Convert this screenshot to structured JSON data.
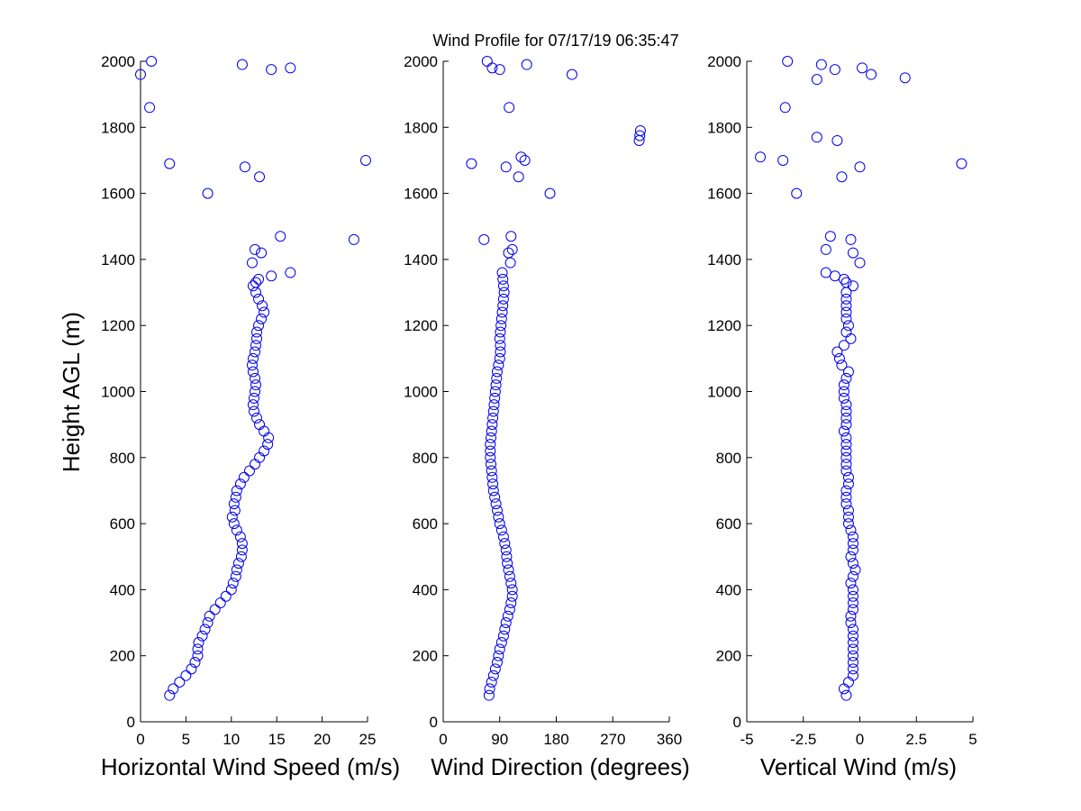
{
  "figure": {
    "title": "Wind Profile for  07/17/19 06:35:47",
    "ylabel": "Height AGL (m)"
  },
  "chart_data": [
    {
      "type": "scatter",
      "xlabel": "Horizontal Wind Speed (m/s)",
      "ylabel": "Height AGL (m)",
      "xlim": [
        0,
        25
      ],
      "ylim": [
        0,
        2000
      ],
      "xticks": [
        "0",
        "5",
        "10",
        "15",
        "20",
        "25"
      ],
      "yticks": [
        "0",
        "200",
        "400",
        "600",
        "800",
        "1000",
        "1200",
        "1400",
        "1600",
        "1800",
        "2000"
      ],
      "grid": false,
      "marker": "open-circle",
      "color": "#0000ee",
      "profile": [
        [
          80,
          3.2
        ],
        [
          100,
          3.6
        ],
        [
          120,
          4.3
        ],
        [
          140,
          5.0
        ],
        [
          160,
          5.6
        ],
        [
          180,
          6.0
        ],
        [
          200,
          6.3
        ],
        [
          220,
          6.3
        ],
        [
          240,
          6.4
        ],
        [
          260,
          6.8
        ],
        [
          280,
          7.1
        ],
        [
          300,
          7.4
        ],
        [
          320,
          7.6
        ],
        [
          340,
          8.2
        ],
        [
          360,
          8.8
        ],
        [
          380,
          9.4
        ],
        [
          400,
          10.0
        ],
        [
          420,
          10.2
        ],
        [
          440,
          10.5
        ],
        [
          460,
          10.6
        ],
        [
          480,
          10.8
        ],
        [
          500,
          11.1
        ],
        [
          520,
          11.2
        ],
        [
          540,
          11.2
        ],
        [
          560,
          11.0
        ],
        [
          580,
          10.6
        ],
        [
          600,
          10.3
        ],
        [
          620,
          10.1
        ],
        [
          640,
          10.4
        ],
        [
          660,
          10.3
        ],
        [
          680,
          10.5
        ],
        [
          700,
          10.6
        ],
        [
          720,
          11.0
        ],
        [
          740,
          11.4
        ],
        [
          760,
          12.0
        ],
        [
          780,
          12.6
        ],
        [
          800,
          13.1
        ],
        [
          820,
          13.6
        ],
        [
          840,
          14.0
        ],
        [
          860,
          14.1
        ],
        [
          880,
          13.6
        ],
        [
          900,
          13.1
        ],
        [
          920,
          12.8
        ],
        [
          940,
          12.5
        ],
        [
          960,
          12.4
        ],
        [
          980,
          12.5
        ],
        [
          1000,
          12.6
        ],
        [
          1020,
          12.7
        ],
        [
          1040,
          12.6
        ],
        [
          1060,
          12.4
        ],
        [
          1080,
          12.3
        ],
        [
          1100,
          12.4
        ],
        [
          1120,
          12.6
        ],
        [
          1140,
          12.7
        ],
        [
          1160,
          12.8
        ],
        [
          1180,
          12.8
        ],
        [
          1200,
          13.0
        ],
        [
          1220,
          13.3
        ],
        [
          1240,
          13.6
        ],
        [
          1260,
          13.4
        ],
        [
          1280,
          13.0
        ],
        [
          1300,
          12.7
        ],
        [
          1320,
          12.4
        ]
      ],
      "scatter_points": [
        [
          1330,
          12.7
        ],
        [
          1340,
          13.0
        ],
        [
          1350,
          14.4
        ],
        [
          1360,
          16.5
        ],
        [
          1390,
          12.3
        ],
        [
          1420,
          13.3
        ],
        [
          1430,
          12.6
        ],
        [
          1460,
          23.5
        ],
        [
          1470,
          15.4
        ],
        [
          1600,
          7.4
        ],
        [
          1650,
          13.1
        ],
        [
          1680,
          11.5
        ],
        [
          1690,
          3.2
        ],
        [
          1700,
          24.8
        ],
        [
          1860,
          1.0
        ],
        [
          1960,
          0.0
        ],
        [
          1975,
          14.4
        ],
        [
          1980,
          16.5
        ],
        [
          1990,
          11.2
        ],
        [
          2000,
          1.2
        ]
      ]
    },
    {
      "type": "scatter",
      "xlabel": "Wind Direction (degrees)",
      "xlim": [
        0,
        360
      ],
      "ylim": [
        0,
        2000
      ],
      "xticks": [
        "0",
        "90",
        "180",
        "270",
        "360"
      ],
      "yticks": [
        "0",
        "200",
        "400",
        "600",
        "800",
        "1000",
        "1200",
        "1400",
        "1600",
        "1800",
        "2000"
      ],
      "grid": false,
      "marker": "open-circle",
      "color": "#0000ee",
      "profile": [
        [
          80,
          73
        ],
        [
          100,
          74
        ],
        [
          120,
          77
        ],
        [
          140,
          80
        ],
        [
          160,
          83
        ],
        [
          180,
          86
        ],
        [
          200,
          88
        ],
        [
          220,
          90
        ],
        [
          240,
          93
        ],
        [
          260,
          96
        ],
        [
          280,
          98
        ],
        [
          300,
          100
        ],
        [
          320,
          103
        ],
        [
          340,
          106
        ],
        [
          360,
          108
        ],
        [
          380,
          110
        ],
        [
          400,
          110
        ],
        [
          420,
          108
        ],
        [
          440,
          106
        ],
        [
          460,
          104
        ],
        [
          480,
          102
        ],
        [
          500,
          101
        ],
        [
          520,
          100
        ],
        [
          540,
          98
        ],
        [
          560,
          96
        ],
        [
          580,
          93
        ],
        [
          600,
          90
        ],
        [
          620,
          88
        ],
        [
          640,
          86
        ],
        [
          660,
          84
        ],
        [
          680,
          82
        ],
        [
          700,
          80
        ],
        [
          720,
          79
        ],
        [
          740,
          78
        ],
        [
          760,
          77
        ],
        [
          780,
          76
        ],
        [
          800,
          75
        ],
        [
          820,
          75
        ],
        [
          840,
          75
        ],
        [
          860,
          76
        ],
        [
          880,
          77
        ],
        [
          900,
          78
        ],
        [
          920,
          79
        ],
        [
          940,
          80
        ],
        [
          960,
          81
        ],
        [
          980,
          82
        ],
        [
          1000,
          83
        ],
        [
          1020,
          84
        ],
        [
          1040,
          85
        ],
        [
          1060,
          86
        ],
        [
          1080,
          88
        ],
        [
          1100,
          90
        ],
        [
          1120,
          91
        ],
        [
          1140,
          91
        ],
        [
          1160,
          90
        ],
        [
          1180,
          91
        ],
        [
          1200,
          92
        ],
        [
          1220,
          93
        ],
        [
          1240,
          94
        ],
        [
          1260,
          95
        ],
        [
          1280,
          96
        ],
        [
          1300,
          97
        ],
        [
          1320,
          96
        ],
        [
          1340,
          95
        ],
        [
          1360,
          94
        ]
      ],
      "scatter_points": [
        [
          1390,
          107
        ],
        [
          1420,
          104
        ],
        [
          1430,
          110
        ],
        [
          1460,
          65
        ],
        [
          1470,
          108
        ],
        [
          1600,
          170
        ],
        [
          1650,
          120
        ],
        [
          1680,
          100
        ],
        [
          1690,
          45
        ],
        [
          1700,
          130
        ],
        [
          1710,
          124
        ],
        [
          1760,
          312
        ],
        [
          1775,
          313
        ],
        [
          1790,
          314
        ],
        [
          1860,
          105
        ],
        [
          1960,
          205
        ],
        [
          1975,
          90
        ],
        [
          1980,
          78
        ],
        [
          1990,
          133
        ],
        [
          2000,
          70
        ]
      ]
    },
    {
      "type": "scatter",
      "xlabel": "Vertical Wind (m/s)",
      "xlim": [
        -5,
        5
      ],
      "ylim": [
        0,
        2000
      ],
      "xticks": [
        "-5",
        "-2.5",
        "0",
        "2.5",
        "5"
      ],
      "yticks": [
        "0",
        "200",
        "400",
        "600",
        "800",
        "1000",
        "1200",
        "1400",
        "1600",
        "1800",
        "2000"
      ],
      "grid": false,
      "marker": "open-circle",
      "color": "#0000ee",
      "profile": [
        [
          80,
          -0.6
        ],
        [
          100,
          -0.7
        ],
        [
          120,
          -0.5
        ],
        [
          140,
          -0.3
        ],
        [
          160,
          -0.3
        ],
        [
          180,
          -0.3
        ],
        [
          200,
          -0.3
        ],
        [
          220,
          -0.3
        ],
        [
          240,
          -0.3
        ],
        [
          260,
          -0.3
        ],
        [
          280,
          -0.3
        ],
        [
          300,
          -0.4
        ],
        [
          320,
          -0.4
        ],
        [
          340,
          -0.3
        ],
        [
          360,
          -0.3
        ],
        [
          380,
          -0.3
        ],
        [
          400,
          -0.3
        ],
        [
          420,
          -0.4
        ],
        [
          440,
          -0.3
        ],
        [
          460,
          -0.2
        ],
        [
          480,
          -0.3
        ],
        [
          500,
          -0.4
        ],
        [
          520,
          -0.3
        ],
        [
          540,
          -0.3
        ],
        [
          560,
          -0.3
        ],
        [
          580,
          -0.4
        ],
        [
          600,
          -0.5
        ],
        [
          620,
          -0.5
        ],
        [
          640,
          -0.5
        ],
        [
          660,
          -0.6
        ],
        [
          680,
          -0.6
        ],
        [
          700,
          -0.6
        ],
        [
          720,
          -0.5
        ],
        [
          740,
          -0.5
        ],
        [
          760,
          -0.6
        ],
        [
          780,
          -0.6
        ],
        [
          800,
          -0.6
        ],
        [
          820,
          -0.6
        ],
        [
          840,
          -0.6
        ],
        [
          860,
          -0.6
        ],
        [
          880,
          -0.7
        ],
        [
          900,
          -0.6
        ],
        [
          920,
          -0.6
        ],
        [
          940,
          -0.6
        ],
        [
          960,
          -0.6
        ],
        [
          980,
          -0.7
        ],
        [
          1000,
          -0.7
        ],
        [
          1020,
          -0.7
        ],
        [
          1040,
          -0.6
        ],
        [
          1060,
          -0.5
        ],
        [
          1080,
          -0.8
        ],
        [
          1100,
          -0.9
        ],
        [
          1120,
          -1.0
        ],
        [
          1140,
          -0.7
        ],
        [
          1160,
          -0.4
        ],
        [
          1180,
          -0.6
        ],
        [
          1200,
          -0.5
        ],
        [
          1220,
          -0.6
        ],
        [
          1240,
          -0.6
        ],
        [
          1260,
          -0.6
        ],
        [
          1280,
          -0.6
        ],
        [
          1300,
          -0.6
        ],
        [
          1320,
          -0.3
        ]
      ],
      "scatter_points": [
        [
          1330,
          -0.6
        ],
        [
          1340,
          -0.7
        ],
        [
          1350,
          -1.1
        ],
        [
          1360,
          -1.5
        ],
        [
          1390,
          0.0
        ],
        [
          1420,
          -0.3
        ],
        [
          1430,
          -1.5
        ],
        [
          1460,
          -0.4
        ],
        [
          1470,
          -1.3
        ],
        [
          1600,
          -2.8
        ],
        [
          1650,
          -0.8
        ],
        [
          1680,
          0.0
        ],
        [
          1690,
          4.5
        ],
        [
          1700,
          -3.4
        ],
        [
          1710,
          -4.4
        ],
        [
          1760,
          -1.0
        ],
        [
          1770,
          -1.9
        ],
        [
          1860,
          -3.3
        ],
        [
          1945,
          -1.9
        ],
        [
          1950,
          2.0
        ],
        [
          1960,
          0.5
        ],
        [
          1975,
          -1.1
        ],
        [
          1980,
          0.1
        ],
        [
          1990,
          -1.7
        ],
        [
          2000,
          -3.2
        ]
      ]
    }
  ]
}
